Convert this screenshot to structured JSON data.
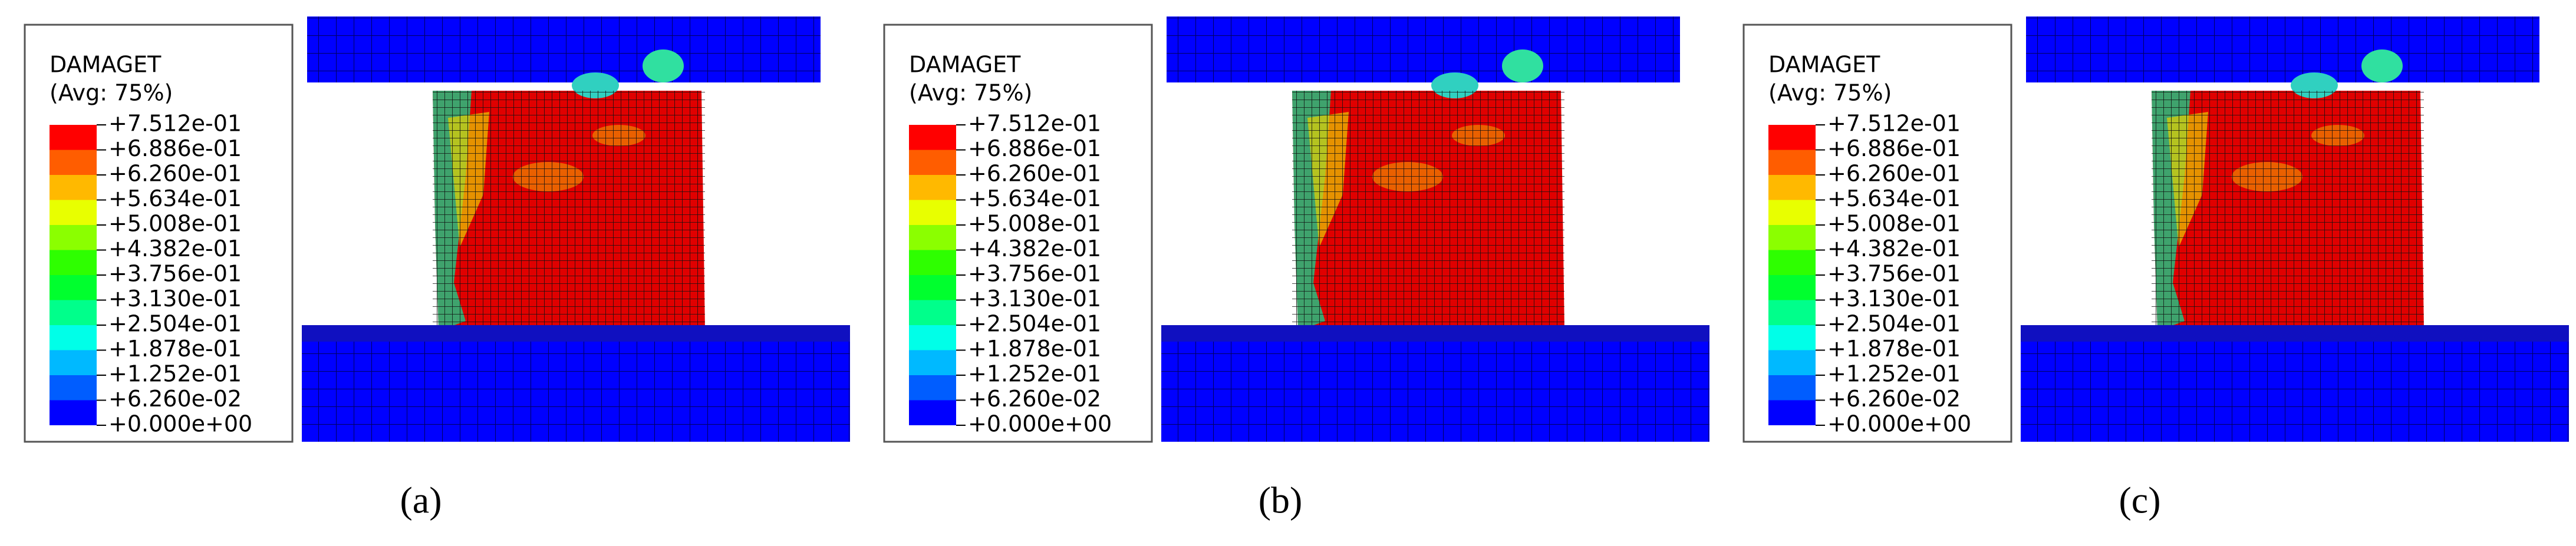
{
  "panels": [
    {
      "legend": {
        "title": "DAMAGET",
        "subtitle": "(Avg: 75%)",
        "levels": [
          "+7.512e-01",
          "+6.886e-01",
          "+6.260e-01",
          "+5.634e-01",
          "+5.008e-01",
          "+4.382e-01",
          "+3.756e-01",
          "+3.130e-01",
          "+2.504e-01",
          "+1.878e-01",
          "+1.252e-01",
          "+6.260e-02",
          "+0.000e+00"
        ],
        "colors": [
          "#ff0000",
          "#ff5d00",
          "#ffb900",
          "#e8ff00",
          "#8bff00",
          "#2eff00",
          "#00ff2e",
          "#00ff8b",
          "#00ffe8",
          "#00b9ff",
          "#005dff",
          "#0000ff"
        ]
      },
      "caption": "(a)"
    },
    {
      "legend": {
        "title": "DAMAGET",
        "subtitle": "(Avg: 75%)",
        "levels": [
          "+7.512e-01",
          "+6.886e-01",
          "+6.260e-01",
          "+5.634e-01",
          "+5.008e-01",
          "+4.382e-01",
          "+3.756e-01",
          "+3.130e-01",
          "+2.504e-01",
          "+1.878e-01",
          "+1.252e-01",
          "+6.260e-02",
          "+0.000e+00"
        ],
        "colors": [
          "#ff0000",
          "#ff5d00",
          "#ffb900",
          "#e8ff00",
          "#8bff00",
          "#2eff00",
          "#00ff2e",
          "#00ff8b",
          "#00ffe8",
          "#00b9ff",
          "#005dff",
          "#0000ff"
        ]
      },
      "caption": "(b)"
    },
    {
      "legend": {
        "title": "DAMAGET",
        "subtitle": "(Avg: 75%)",
        "levels": [
          "+7.512e-01",
          "+6.886e-01",
          "+6.260e-01",
          "+5.634e-01",
          "+5.008e-01",
          "+4.382e-01",
          "+3.756e-01",
          "+3.130e-01",
          "+2.504e-01",
          "+1.878e-01",
          "+1.252e-01",
          "+6.260e-02",
          "+0.000e+00"
        ],
        "colors": [
          "#ff0000",
          "#ff5d00",
          "#ffb900",
          "#e8ff00",
          "#8bff00",
          "#2eff00",
          "#00ff2e",
          "#00ff8b",
          "#00ffe8",
          "#00b9ff",
          "#005dff",
          "#0000ff"
        ]
      },
      "caption": "(c)"
    }
  ]
}
